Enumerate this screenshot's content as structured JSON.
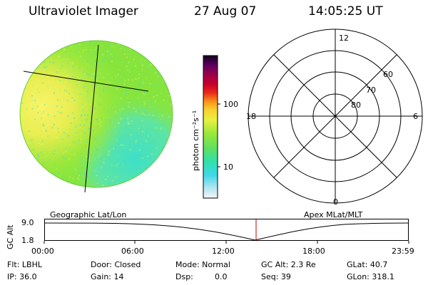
{
  "header": {
    "title": "Ultraviolet Imager",
    "date": "27 Aug 07",
    "time": "14:05:25 UT"
  },
  "colorbar": {
    "label": "photon cm⁻²s⁻¹",
    "ticks": [
      "100",
      "10"
    ]
  },
  "polar": {
    "mlt_labels": [
      "12",
      "18",
      "6",
      "0"
    ],
    "lat_labels": [
      "60",
      "70",
      "80"
    ]
  },
  "panel_labels": {
    "left": "Geographic Lat/Lon",
    "right": "Apex MLat/MLT"
  },
  "alt_plot": {
    "ylabel": "GC Alt",
    "yticks": [
      "9.0",
      "1.8"
    ],
    "xticks": [
      "00:00",
      "06:00",
      "12:00",
      "18:00",
      "23:59"
    ]
  },
  "info": {
    "flt": "Flt: LBHL",
    "ip": "IP: 36.0",
    "door": "Door: Closed",
    "gain": "Gain: 14",
    "mode": "Mode: Normal",
    "dsp_label": "Dsp:",
    "dsp_value": "0.0",
    "gc_alt": "GC Alt: 2.3 Re",
    "seq": "Seq: 39",
    "glat": "GLat: 40.7",
    "glon": "GLon: 318.1"
  },
  "colors": {
    "disk_green": "#8fe83a",
    "disk_yellow": "#f4f060",
    "disk_cyan": "#40e0c8",
    "cursor_line": "#cc0000"
  }
}
